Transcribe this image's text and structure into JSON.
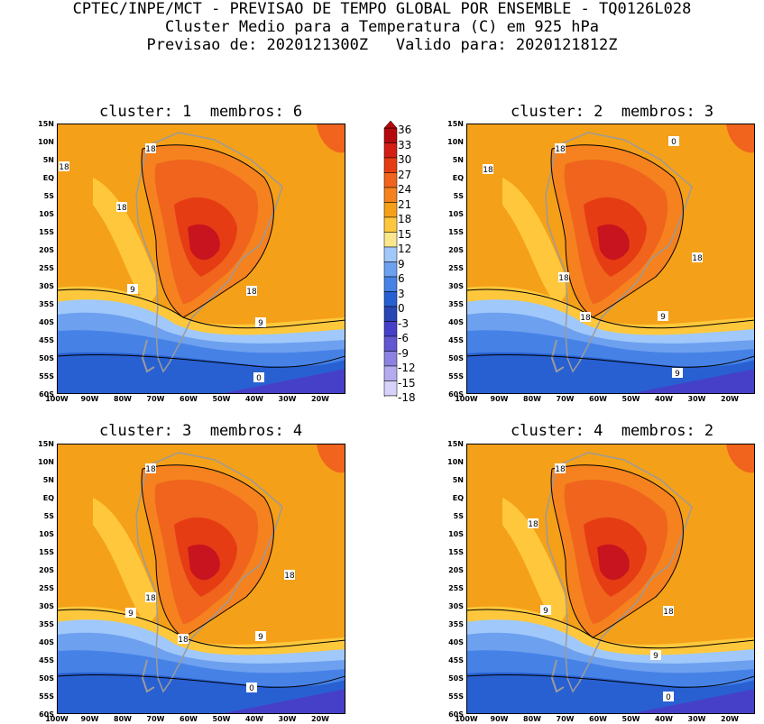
{
  "header": {
    "line1": "CPTEC/INPE/MCT - PREVISAO DE TEMPO GLOBAL POR ENSEMBLE - TQ0126L028",
    "line2": "Cluster Medio para a Temperatura (C) em 925 hPa",
    "line3": "Previsao de: 2020121300Z   Valido para: 2020121812Z"
  },
  "panels": [
    {
      "title": "cluster: 1  membros: 6",
      "contour_labels": [
        "18",
        "18",
        "18",
        "18",
        "9",
        "9",
        "0"
      ]
    },
    {
      "title": "cluster: 2  membros: 3",
      "contour_labels": [
        "18",
        "18",
        "18",
        "18",
        "18",
        "9",
        "9",
        "0"
      ]
    },
    {
      "title": "cluster: 3  membros: 4",
      "contour_labels": [
        "18",
        "18",
        "18",
        "18",
        "9",
        "9",
        "0"
      ]
    },
    {
      "title": "cluster: 4  membros: 2",
      "contour_labels": [
        "18",
        "18",
        "18",
        "9",
        "9",
        "0"
      ]
    }
  ],
  "lat_labels": [
    "15N",
    "10N",
    "5N",
    "EQ",
    "5S",
    "10S",
    "15S",
    "20S",
    "25S",
    "30S",
    "35S",
    "40S",
    "45S",
    "50S",
    "55S",
    "60S"
  ],
  "lon_labels": [
    "100W",
    "90W",
    "80W",
    "70W",
    "60W",
    "50W",
    "40W",
    "30W",
    "20W"
  ],
  "colorbar": {
    "labels": [
      "36",
      "33",
      "30",
      "27",
      "24",
      "21",
      "18",
      "15",
      "12",
      "9",
      "6",
      "3",
      "0",
      "-3",
      "-6",
      "-9",
      "-12",
      "-15",
      "-18"
    ],
    "colors": [
      "#b40a0e",
      "#d21e14",
      "#e63c14",
      "#f0641e",
      "#f5821e",
      "#f5a019",
      "#ffc83c",
      "#fae68c",
      "#a0c8fa",
      "#6ea0f0",
      "#4682e6",
      "#2860d2",
      "#2846b4",
      "#4640c8",
      "#6458d2",
      "#8c82e1",
      "#b4aaf0",
      "#d7d2fa"
    ]
  },
  "map_colors": {
    "hot1": "#c8141e",
    "hot2": "#e63c14",
    "hot3": "#f0641e",
    "warm1": "#f5821e",
    "warm2": "#f5a019",
    "mild": "#ffc83c",
    "cool": "#fae68c",
    "c1": "#a0c8fa",
    "c2": "#6ea0f0",
    "c3": "#4682e6",
    "c4": "#2860d2",
    "c5": "#4640c8",
    "land": "#9b9b9b"
  }
}
